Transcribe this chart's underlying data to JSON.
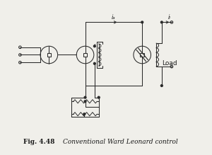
{
  "bg_color": "#f0efea",
  "line_color": "#2a2a2a",
  "text_color": "#1a1a1a",
  "label_ia": "iₐ",
  "label_il": "iₗ",
  "label_load": "Load",
  "caption_bold": "Fig. 4.48",
  "caption_italic": "Conventional Ward Leonard control",
  "fig_width": 3.0,
  "fig_height": 2.19,
  "dpi": 100
}
